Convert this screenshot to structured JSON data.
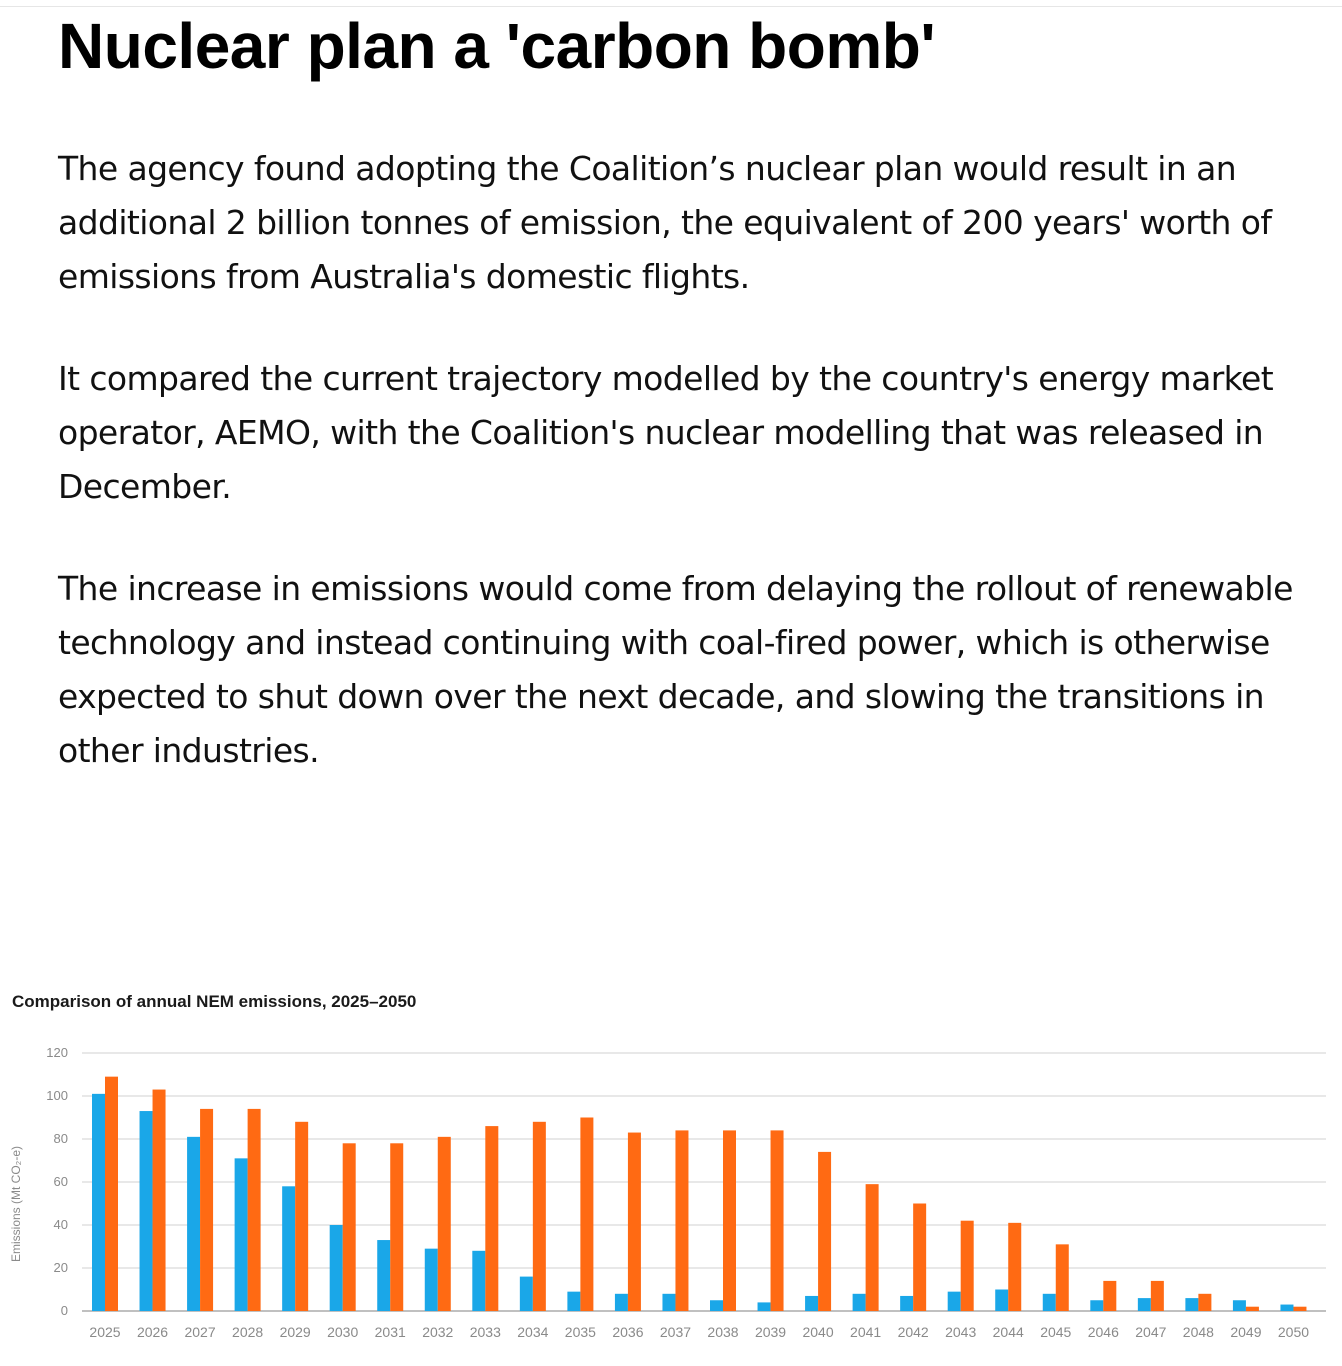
{
  "article": {
    "headline": "Nuclear plan a 'carbon bomb'",
    "paragraphs": [
      "The agency found adopting the Coalition’s nuclear plan would result in an additional 2 billion tonnes of emission, the equivalent of 200 years' worth of emissions from Australia's domestic flights.",
      "It compared the current trajectory modelled by the country's energy market operator, AEMO, with the Coalition's nuclear modelling that was released in December.",
      "The increase in emissions would come from delaying the rollout of renewable technology and instead continuing with coal-fired power, which is otherwise expected to shut down over the next decade, and slowing the transitions in other industries."
    ]
  },
  "chart_data": {
    "type": "bar",
    "title": "Comparison of annual NEM emissions, 2025–2050",
    "xlabel": "",
    "ylabel": "Emissions (Mt CO₂-e)",
    "ylim": [
      0,
      120
    ],
    "yticks": [
      0,
      20,
      40,
      60,
      80,
      100,
      120
    ],
    "grid": true,
    "categories": [
      "2025",
      "2026",
      "2027",
      "2028",
      "2029",
      "2030",
      "2031",
      "2032",
      "2033",
      "2034",
      "2035",
      "2036",
      "2037",
      "2038",
      "2039",
      "2040",
      "2041",
      "2042",
      "2043",
      "2044",
      "2045",
      "2046",
      "2047",
      "2048",
      "2049",
      "2050"
    ],
    "series": [
      {
        "color": "#1aa7e8",
        "values": [
          101,
          93,
          81,
          71,
          58,
          40,
          33,
          29,
          28,
          16,
          9,
          8,
          8,
          5,
          4,
          7,
          8,
          7,
          9,
          10,
          8,
          5,
          6,
          6,
          5,
          3
        ]
      },
      {
        "color": "#ff6a13",
        "values": [
          109,
          103,
          94,
          94,
          88,
          78,
          78,
          81,
          86,
          88,
          90,
          83,
          84,
          84,
          84,
          74,
          59,
          50,
          42,
          41,
          31,
          14,
          14,
          8,
          2,
          2
        ]
      }
    ]
  }
}
